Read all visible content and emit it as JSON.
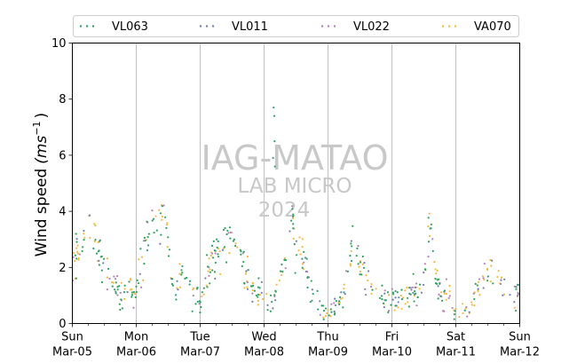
{
  "chart_data": {
    "type": "scatter",
    "title": "",
    "xlabel": "",
    "ylabel": "Wind speed",
    "ylabel_unit": "(ms-1)",
    "ylim": [
      0,
      10
    ],
    "yticks": [
      "0",
      "2",
      "4",
      "6",
      "8",
      "10"
    ],
    "xlim_days": [
      0,
      7
    ],
    "xticks": [
      {
        "day": "Sun",
        "date": "Mar-05"
      },
      {
        "day": "Mon",
        "date": "Mar-06"
      },
      {
        "day": "Tue",
        "date": "Mar-07"
      },
      {
        "day": "Wed",
        "date": "Mar-08"
      },
      {
        "day": "Thu",
        "date": "Mar-09"
      },
      {
        "day": "Fri",
        "date": "Mar-10"
      },
      {
        "day": "Sat",
        "date": "Mar-11"
      },
      {
        "day": "Sun",
        "date": "Mar-12"
      }
    ],
    "grid": "vertical",
    "legend_position": "top",
    "series": [
      {
        "name": "VL063",
        "color": "#2ca25f"
      },
      {
        "name": "VL011",
        "color": "#6f7fb3"
      },
      {
        "name": "VL022",
        "color": "#b57fb8"
      },
      {
        "name": "VA070",
        "color": "#f5b942"
      }
    ],
    "profile_hours": [
      0,
      3,
      6,
      8,
      10,
      12,
      14,
      18,
      21
    ],
    "profile_values": [
      [
        2.0,
        2.8,
        3.8,
        3.2,
        2.6,
        2.2,
        1.6,
        1.0,
        1.2
      ],
      [
        1.2,
        2.8,
        3.6,
        3.2,
        3.8,
        3.2,
        1.2,
        1.8,
        1.2
      ],
      [
        0.6,
        2.0,
        2.4,
        2.5,
        2.8,
        3.1,
        2.8,
        1.6,
        1.0
      ],
      [
        1.2,
        0.6,
        1.6,
        2.4,
        3.8,
        2.6,
        2.6,
        1.2,
        0.4
      ],
      [
        0.4,
        0.5,
        1.0,
        2.4,
        3.0,
        2.2,
        1.6,
        1.0,
        0.8
      ],
      [
        0.8,
        0.8,
        1.0,
        1.2,
        1.0,
        1.6,
        3.6,
        1.0,
        1.0
      ],
      [
        0.5,
        0.4,
        0.6,
        1.2,
        1.8,
        1.6,
        2.4,
        1.2,
        1.0
      ]
    ],
    "peak_max": 7.7,
    "peak_day_hour": 3.6
  },
  "watermark": {
    "line1": "IAG-MATAO",
    "line2": "LAB MICRO",
    "line3": "2024"
  }
}
